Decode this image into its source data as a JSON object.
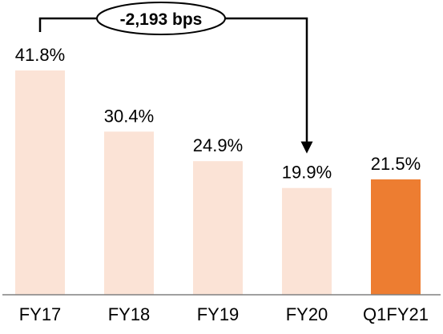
{
  "chart_data": {
    "type": "bar",
    "categories": [
      "FY17",
      "FY18",
      "FY19",
      "FY20",
      "Q1FY21"
    ],
    "values": [
      41.8,
      30.4,
      24.9,
      19.9,
      21.5
    ],
    "value_labels": [
      "41.8%",
      "30.4%",
      "24.9%",
      "19.9%",
      "21.5%"
    ],
    "title": "",
    "xlabel": "",
    "ylabel": "",
    "ylim": [
      0,
      45
    ],
    "grid": false,
    "legend": "none",
    "colors": {
      "default_bar": "#FBE3D6",
      "highlight_bar": "#ED7D31",
      "axis": "#808080",
      "callout": "#000000"
    },
    "highlight_category": "Q1FY21",
    "annotation": {
      "text": "-2,193 bps",
      "from_category": "FY17",
      "to_category": "FY20"
    }
  }
}
